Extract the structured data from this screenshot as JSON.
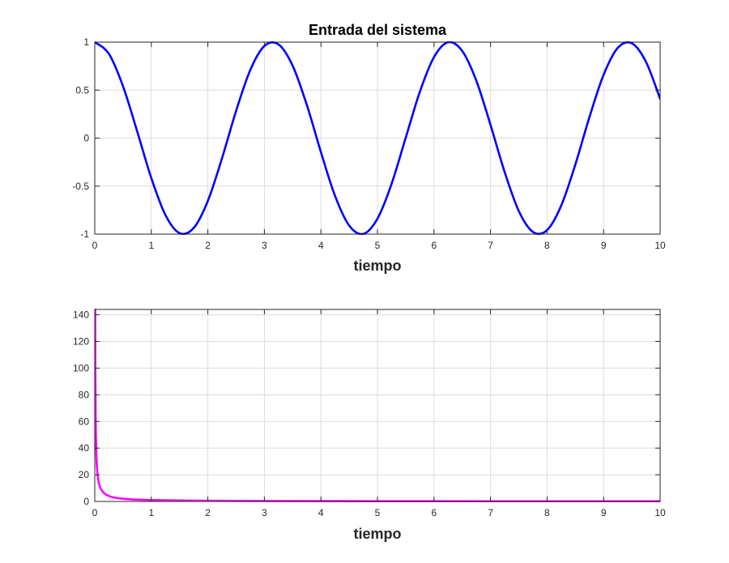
{
  "chart_data": [
    {
      "type": "line",
      "title": "Entrada del sistema",
      "xlabel": "tiempo",
      "ylabel": "",
      "xlim": [
        0,
        10
      ],
      "ylim": [
        -1,
        1
      ],
      "xticks": [
        0,
        1,
        2,
        3,
        4,
        5,
        6,
        7,
        8,
        9,
        10
      ],
      "xtick_labels": [
        "0",
        "1",
        "2",
        "3",
        "4",
        "5",
        "6",
        "7",
        "8",
        "9",
        "10"
      ],
      "yticks": [
        -1,
        -0.5,
        0,
        0.5,
        1
      ],
      "ytick_labels": [
        "-1",
        "-0.5",
        "0",
        "0.5",
        "1"
      ],
      "grid": true,
      "series": [
        {
          "color": "#0000ff",
          "x": [
            0,
            0.25,
            0.5,
            0.75,
            1,
            1.25,
            1.5,
            1.75,
            2,
            2.25,
            2.5,
            2.75,
            3,
            3.25,
            3.5,
            3.75,
            4,
            4.25,
            4.5,
            4.75,
            5,
            5.25,
            5.5,
            5.75,
            6,
            6.25,
            6.5,
            6.75,
            7,
            7.25,
            7.5,
            7.75,
            8,
            8.25,
            8.5,
            8.75,
            9,
            9.25,
            9.5,
            9.75,
            10
          ],
          "y": [
            1,
            0.878,
            0.54,
            0.071,
            -0.416,
            -0.801,
            -0.99,
            -0.936,
            -0.654,
            -0.211,
            0.284,
            0.709,
            0.96,
            0.976,
            0.754,
            0.347,
            -0.146,
            -0.602,
            -0.911,
            -0.998,
            -0.839,
            -0.476,
            0.004,
            0.483,
            0.844,
            0.999,
            0.907,
            0.596,
            0.137,
            -0.354,
            -0.76,
            -0.977,
            -0.958,
            -0.703,
            -0.275,
            0.22,
            0.66,
            0.94,
            0.988,
            0.794,
            0.408
          ]
        }
      ]
    },
    {
      "type": "line",
      "title": "",
      "xlabel": "tiempo",
      "ylabel": "",
      "xlim": [
        0,
        10
      ],
      "ylim": [
        0,
        144
      ],
      "xticks": [
        0,
        1,
        2,
        3,
        4,
        5,
        6,
        7,
        8,
        9,
        10
      ],
      "xtick_labels": [
        "0",
        "1",
        "2",
        "3",
        "4",
        "5",
        "6",
        "7",
        "8",
        "9",
        "10"
      ],
      "yticks": [
        0,
        20,
        40,
        60,
        80,
        100,
        120,
        140
      ],
      "ytick_labels": [
        "0",
        "20",
        "40",
        "60",
        "80",
        "100",
        "120",
        "140"
      ],
      "grid": true,
      "series": [
        {
          "color": "#ff00ff",
          "x": [
            0.007,
            0.01,
            0.015,
            0.02,
            0.03,
            0.04,
            0.05,
            0.07,
            0.1,
            0.15,
            0.2,
            0.3,
            0.4,
            0.5,
            0.7,
            1,
            1.5,
            2,
            3,
            4,
            5,
            6,
            7,
            8,
            9,
            10
          ],
          "y": [
            144,
            100,
            66,
            50,
            33,
            25,
            20,
            14,
            10,
            6.7,
            5,
            3.3,
            2.5,
            2,
            1.4,
            1,
            0.7,
            0.5,
            0.33,
            0.25,
            0.2,
            0.17,
            0.14,
            0.13,
            0.11,
            0.1
          ]
        }
      ]
    }
  ]
}
